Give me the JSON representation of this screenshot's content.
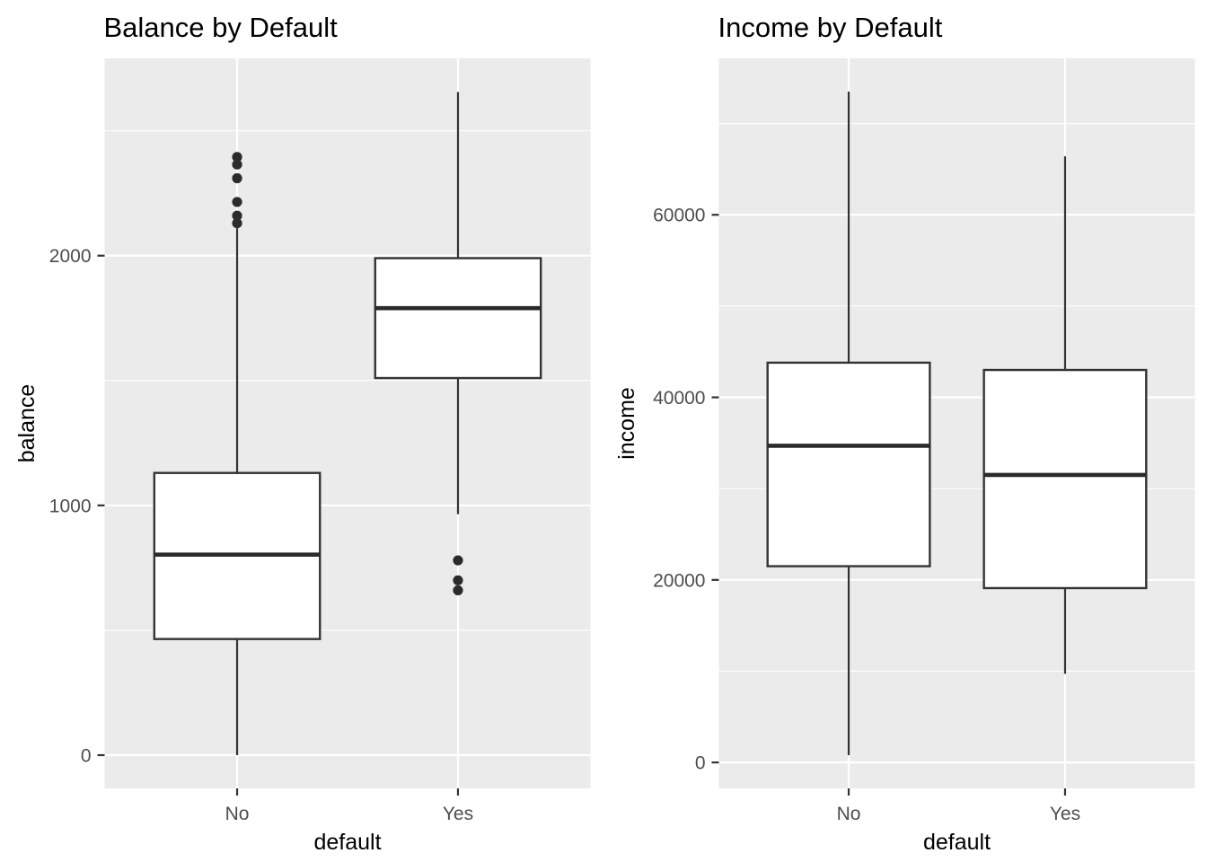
{
  "figure": {
    "background": "#FFFFFF"
  },
  "style": {
    "panel_bg": "#EBEBEB",
    "grid_color": "#FFFFFF",
    "box_stroke": "#333333",
    "box_fill": "#FFFFFF",
    "median_color": "#2B2B2B",
    "outlier_color": "#2B2B2B",
    "tick_mark_color": "#333333",
    "tick_label_color": "#4D4D4D",
    "title_color": "#000000",
    "axis_title_color": "#000000"
  },
  "chart_data": [
    {
      "type": "boxplot",
      "title": "Balance by Default",
      "xlabel": "default",
      "ylabel": "balance",
      "categories": [
        "No",
        "Yes"
      ],
      "ylim": [
        -133,
        2790
      ],
      "yticks": [
        0,
        1000,
        2000
      ],
      "ytick_labels": [
        "0",
        "1000",
        "2000"
      ],
      "yticks_minor": [
        500,
        1500,
        2500
      ],
      "grid": "major+minor, white on grey panel",
      "legend": "none",
      "boxes": [
        {
          "category": "No",
          "whisker_low": 0,
          "q1": 465,
          "median": 803,
          "q3": 1130,
          "whisker_high": 2110,
          "outliers": [
            2130,
            2160,
            2215,
            2310,
            2365,
            2395
          ]
        },
        {
          "category": "Yes",
          "whisker_low": 965,
          "q1": 1510,
          "median": 1790,
          "q3": 1990,
          "whisker_high": 2655,
          "outliers": [
            660,
            700,
            780
          ]
        }
      ]
    },
    {
      "type": "boxplot",
      "title": "Income by Default",
      "xlabel": "default",
      "ylabel": "income",
      "categories": [
        "No",
        "Yes"
      ],
      "ylim": [
        -2840,
        77140
      ],
      "yticks": [
        0,
        20000,
        40000,
        60000
      ],
      "ytick_labels": [
        "0",
        "20000",
        "40000",
        "60000"
      ],
      "yticks_minor": [
        10000,
        30000,
        50000,
        70000
      ],
      "grid": "major+minor, white on grey panel",
      "legend": "none",
      "boxes": [
        {
          "category": "No",
          "whisker_low": 800,
          "q1": 21500,
          "median": 34700,
          "q3": 43800,
          "whisker_high": 73500,
          "outliers": []
        },
        {
          "category": "Yes",
          "whisker_low": 9700,
          "q1": 19100,
          "median": 31500,
          "q3": 43000,
          "whisker_high": 66400,
          "outliers": []
        }
      ]
    }
  ]
}
